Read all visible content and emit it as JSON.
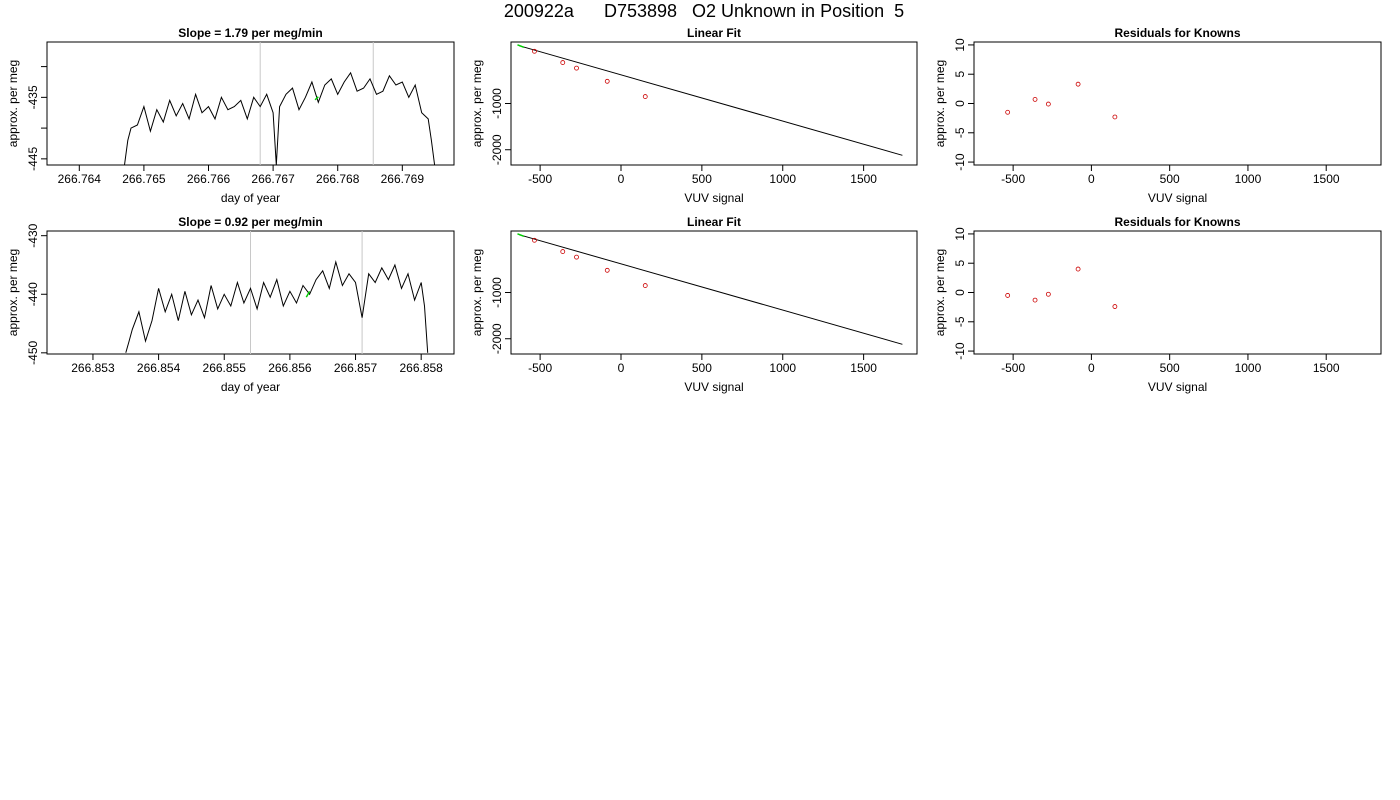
{
  "figure": {
    "title": "200922a      D753898   O2 Unknown in Position  5",
    "colors": {
      "trace": "#000000",
      "vline": "#c8c8c8",
      "highlight": "#00cc00",
      "known_points": "#cc0000",
      "frame": "#000000"
    }
  },
  "chart_data": [
    {
      "id": "row1-timeseries",
      "type": "line",
      "title": "Slope =  1.79  per meg/min",
      "xlabel": "day of year",
      "ylabel": "approx. per meg",
      "xlim": [
        266.7635,
        266.7698
      ],
      "ylim": [
        -446,
        -426
      ],
      "xticks": [
        266.764,
        266.765,
        266.766,
        266.767,
        266.768,
        266.769
      ],
      "xtick_labels": [
        "266.764",
        "266.765",
        "266.766",
        "266.767",
        "266.768",
        "266.769"
      ],
      "yticks": [
        -445,
        -440,
        -435,
        -430
      ],
      "ytick_labels": [
        "-445",
        "",
        "-435",
        ""
      ],
      "vlines": [
        266.7668,
        266.76855
      ],
      "highlight_segment": {
        "x": [
          266.76765,
          266.7677
        ],
        "y": [
          -435.4,
          -434.9
        ]
      },
      "series": [
        {
          "x": [
            266.7647,
            266.76475,
            266.7648,
            266.7649,
            266.765,
            266.7651,
            266.7652,
            266.7653,
            266.7654,
            266.7655,
            266.7656,
            266.7657,
            266.7658,
            266.7659,
            266.766,
            266.7661,
            266.7662,
            266.7663,
            266.7664,
            266.7665,
            266.7666,
            266.7667,
            266.7668,
            266.7669,
            266.767,
            266.76705,
            266.7671,
            266.7672,
            266.7673,
            266.7674,
            266.7675,
            266.7676,
            266.7677,
            266.7678,
            266.7679,
            266.768,
            266.7681,
            266.7682,
            266.7683,
            266.7684,
            266.7685,
            266.7686,
            266.7687,
            266.7688,
            266.7689,
            266.769,
            266.7691,
            266.7692,
            266.7693,
            266.7694,
            266.76945,
            266.7695
          ],
          "y": [
            -446,
            -442,
            -440,
            -439.5,
            -436.5,
            -440.5,
            -437,
            -439,
            -435.5,
            -438,
            -436,
            -438.5,
            -434.5,
            -437.5,
            -436.5,
            -438.5,
            -435,
            -437,
            -436.5,
            -435.5,
            -438.5,
            -435,
            -436.5,
            -434.5,
            -437.5,
            -446,
            -436.5,
            -434.5,
            -433.5,
            -437,
            -435,
            -432.5,
            -435.8,
            -433,
            -432,
            -434.5,
            -432.5,
            -431,
            -434,
            -433.5,
            -432,
            -434.5,
            -434,
            -431.5,
            -433,
            -432.5,
            -435,
            -433,
            -437.5,
            -438.5,
            -442,
            -446
          ]
        }
      ]
    },
    {
      "id": "row1-linear-fit",
      "type": "line",
      "title": "Linear Fit",
      "xlabel": "VUV signal",
      "ylabel": "approx. per meg",
      "xlim": [
        -680,
        1830
      ],
      "ylim": [
        -2330,
        330
      ],
      "xticks": [
        -500,
        0,
        500,
        1000,
        1500
      ],
      "xtick_labels": [
        "-500",
        "0",
        "500",
        "1000",
        "1500"
      ],
      "yticks": [
        -1000,
        -2000
      ],
      "ytick_labels": [
        "-1000",
        "-2000"
      ],
      "series": [
        {
          "name": "fit",
          "x": [
            -630,
            1740
          ],
          "y": [
            250,
            -2120
          ]
        }
      ],
      "known_points": {
        "x": [
          -535,
          -360,
          -275,
          -85,
          150
        ],
        "y": [
          130,
          -115,
          -235,
          -520,
          -850
        ]
      },
      "highlight_segment": {
        "x": [
          -640,
          -600
        ],
        "y": [
          270,
          215
        ]
      }
    },
    {
      "id": "row1-residuals",
      "type": "scatter",
      "title": "Residuals for Knowns",
      "xlabel": "VUV signal",
      "ylabel": "approx. per meg",
      "xlim": [
        -750,
        1850
      ],
      "ylim": [
        -10.5,
        10.5
      ],
      "xticks": [
        -500,
        0,
        500,
        1000,
        1500
      ],
      "xtick_labels": [
        "-500",
        "0",
        "500",
        "1000",
        "1500"
      ],
      "yticks": [
        10,
        5,
        0,
        -5,
        -10
      ],
      "ytick_labels": [
        "10",
        "5",
        "0",
        "-5",
        "-10"
      ],
      "series": [
        {
          "x": [
            -535,
            -360,
            -275,
            -85,
            150
          ],
          "y": [
            -1.5,
            0.7,
            -0.1,
            3.3,
            -2.3
          ]
        }
      ]
    },
    {
      "id": "row2-timeseries",
      "type": "line",
      "title": "Slope =  0.92  per meg/min",
      "xlabel": "day of year",
      "ylabel": "approx. per meg",
      "xlim": [
        266.8523,
        266.8585
      ],
      "ylim": [
        -450.2,
        -429.2
      ],
      "xticks": [
        266.853,
        266.854,
        266.855,
        266.856,
        266.857,
        266.858
      ],
      "xtick_labels": [
        "266.853",
        "266.854",
        "266.855",
        "266.856",
        "266.857",
        "266.858"
      ],
      "yticks": [
        -430,
        -440,
        -450
      ],
      "ytick_labels": [
        "-430",
        "-440",
        "-450"
      ],
      "vlines": [
        266.8554,
        266.8571
      ],
      "highlight_segment": {
        "x": [
          266.85625,
          266.8563
        ],
        "y": [
          -440.5,
          -439.5
        ]
      },
      "series": [
        {
          "x": [
            266.8535,
            266.85355,
            266.8536,
            266.8537,
            266.8538,
            266.8539,
            266.854,
            266.8541,
            266.8542,
            266.8543,
            266.8544,
            266.8545,
            266.8546,
            266.8547,
            266.8548,
            266.8549,
            266.855,
            266.8551,
            266.8552,
            266.8553,
            266.8554,
            266.8555,
            266.8556,
            266.8557,
            266.8558,
            266.8559,
            266.856,
            266.8561,
            266.8562,
            266.8563,
            266.8564,
            266.8565,
            266.8566,
            266.8567,
            266.8568,
            266.8569,
            266.857,
            266.8571,
            266.8572,
            266.8573,
            266.8574,
            266.8575,
            266.8576,
            266.8577,
            266.8578,
            266.8579,
            266.858,
            266.85805,
            266.8581
          ],
          "y": [
            -450,
            -448,
            -446,
            -443,
            -448,
            -444.5,
            -439,
            -443,
            -440,
            -444.5,
            -439.5,
            -443.5,
            -441,
            -444,
            -438.5,
            -442.5,
            -440,
            -442,
            -438,
            -441.5,
            -439,
            -442.5,
            -438,
            -440.5,
            -437.5,
            -442,
            -439.5,
            -441.5,
            -438.5,
            -440,
            -437.5,
            -436,
            -439,
            -434.5,
            -438.5,
            -436.5,
            -438,
            -444,
            -436.5,
            -438,
            -435.5,
            -437.5,
            -435,
            -439,
            -436.5,
            -441,
            -438,
            -442,
            -450
          ]
        }
      ]
    },
    {
      "id": "row2-linear-fit",
      "type": "line",
      "title": "Linear Fit",
      "xlabel": "VUV signal",
      "ylabel": "approx. per meg",
      "xlim": [
        -680,
        1830
      ],
      "ylim": [
        -2330,
        330
      ],
      "xticks": [
        -500,
        0,
        500,
        1000,
        1500
      ],
      "xtick_labels": [
        "-500",
        "0",
        "500",
        "1000",
        "1500"
      ],
      "yticks": [
        -1000,
        -2000
      ],
      "ytick_labels": [
        "-1000",
        "-2000"
      ],
      "series": [
        {
          "name": "fit",
          "x": [
            -630,
            1740
          ],
          "y": [
            250,
            -2120
          ]
        }
      ],
      "known_points": {
        "x": [
          -535,
          -360,
          -275,
          -85,
          150
        ],
        "y": [
          130,
          -115,
          -235,
          -520,
          -850
        ]
      },
      "highlight_segment": {
        "x": [
          -640,
          -600
        ],
        "y": [
          270,
          215
        ]
      }
    },
    {
      "id": "row2-residuals",
      "type": "scatter",
      "title": "Residuals for Knowns",
      "xlabel": "VUV signal",
      "ylabel": "approx. per meg",
      "xlim": [
        -750,
        1850
      ],
      "ylim": [
        -10.5,
        10.5
      ],
      "xticks": [
        -500,
        0,
        500,
        1000,
        1500
      ],
      "xtick_labels": [
        "-500",
        "0",
        "500",
        "1000",
        "1500"
      ],
      "yticks": [
        10,
        5,
        0,
        -5,
        -10
      ],
      "ytick_labels": [
        "10",
        "5",
        "0",
        "-5",
        "-10"
      ],
      "series": [
        {
          "x": [
            -535,
            -360,
            -275,
            -85,
            150
          ],
          "y": [
            -0.5,
            -1.3,
            -0.3,
            4.0,
            -2.4
          ]
        }
      ]
    }
  ]
}
